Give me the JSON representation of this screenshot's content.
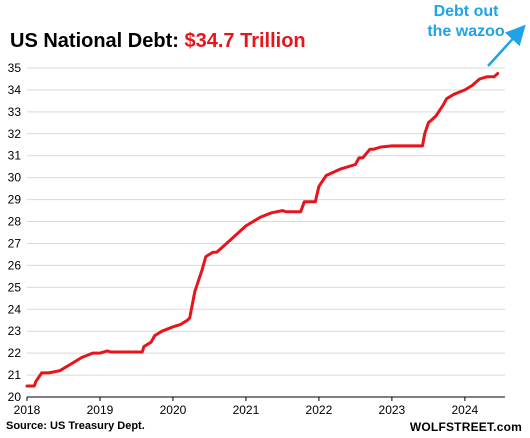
{
  "title": {
    "prefix": "US National Debt:",
    "highlight": "$34.7 Trillion",
    "highlight_color": "#e8141b"
  },
  "annotation": {
    "line1": "Debt out",
    "line2": "the wazoo",
    "color": "#1fa3e6"
  },
  "source": "Source: US Treasury Dept.",
  "brand": "WOLFSTREET.com",
  "chart_data": {
    "type": "line",
    "title": "US National Debt: $34.7 Trillion",
    "xlabel": "",
    "ylabel": "",
    "xlim": [
      2018.0,
      2024.55
    ],
    "ylim": [
      20,
      35
    ],
    "xticks": [
      2018,
      2019,
      2020,
      2021,
      2022,
      2023,
      2024
    ],
    "yticks": [
      20,
      21,
      22,
      23,
      24,
      25,
      26,
      27,
      28,
      29,
      30,
      31,
      32,
      33,
      34,
      35
    ],
    "grid": "horizontal",
    "line_color": "#e8141b",
    "series": [
      {
        "name": "",
        "x": [
          2018.0,
          2018.1,
          2018.12,
          2018.2,
          2018.3,
          2018.45,
          2018.6,
          2018.75,
          2018.9,
          2019.0,
          2019.1,
          2019.15,
          2019.3,
          2019.5,
          2019.58,
          2019.6,
          2019.7,
          2019.75,
          2019.85,
          2020.0,
          2020.1,
          2020.2,
          2020.23,
          2020.3,
          2020.4,
          2020.45,
          2020.55,
          2020.6,
          2020.7,
          2020.8,
          2020.9,
          2021.0,
          2021.1,
          2021.2,
          2021.35,
          2021.5,
          2021.55,
          2021.6,
          2021.75,
          2021.8,
          2021.9,
          2021.95,
          2022.0,
          2022.1,
          2022.3,
          2022.5,
          2022.55,
          2022.6,
          2022.7,
          2022.75,
          2022.85,
          2023.0,
          2023.2,
          2023.42,
          2023.45,
          2023.5,
          2023.6,
          2023.7,
          2023.75,
          2023.85,
          2024.0,
          2024.1,
          2024.2,
          2024.3,
          2024.4,
          2024.45
        ],
        "values": [
          20.5,
          20.5,
          20.7,
          21.1,
          21.1,
          21.2,
          21.5,
          21.8,
          22.0,
          22.0,
          22.1,
          22.05,
          22.05,
          22.05,
          22.05,
          22.3,
          22.5,
          22.8,
          23.0,
          23.2,
          23.3,
          23.5,
          23.6,
          24.8,
          25.8,
          26.4,
          26.6,
          26.6,
          26.9,
          27.2,
          27.5,
          27.8,
          28.0,
          28.2,
          28.4,
          28.5,
          28.45,
          28.45,
          28.45,
          28.9,
          28.9,
          28.9,
          29.6,
          30.1,
          30.4,
          30.6,
          30.9,
          30.9,
          31.3,
          31.3,
          31.4,
          31.45,
          31.45,
          31.45,
          32.0,
          32.5,
          32.8,
          33.3,
          33.6,
          33.8,
          34.0,
          34.2,
          34.5,
          34.6,
          34.6,
          34.75
        ]
      }
    ]
  }
}
